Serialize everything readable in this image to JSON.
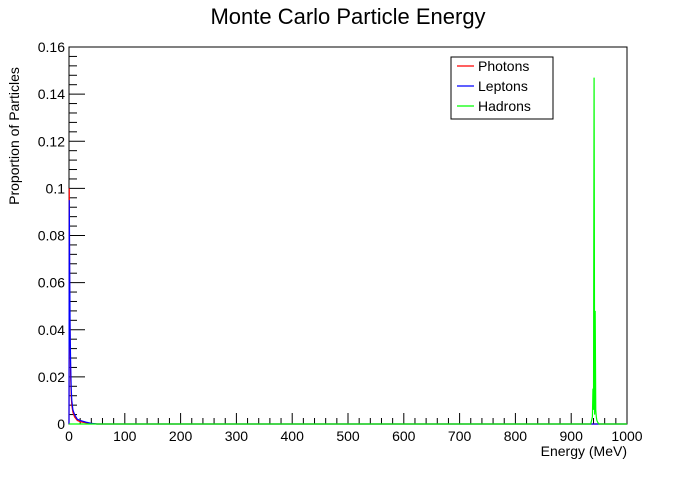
{
  "chart_data": {
    "type": "line",
    "title": "Monte Carlo Particle Energy",
    "xlabel": "Energy (MeV)",
    "ylabel": "Proportion of Particles",
    "xlim": [
      0,
      1000
    ],
    "ylim": [
      0,
      0.16
    ],
    "x_ticks": [
      0,
      100,
      200,
      300,
      400,
      500,
      600,
      700,
      800,
      900,
      1000
    ],
    "y_ticks": [
      0,
      0.02,
      0.04,
      0.06,
      0.08,
      0.1,
      0.12,
      0.14,
      0.16
    ],
    "x_tick_labels": [
      "0",
      "100",
      "200",
      "300",
      "400",
      "500",
      "600",
      "700",
      "800",
      "900",
      "1000"
    ],
    "y_tick_labels": [
      "0",
      "0.02",
      "0.04",
      "0.06",
      "0.08",
      "0.1",
      "0.12",
      "0.14",
      "0.16"
    ],
    "legend_position": "top-right",
    "grid": false,
    "series": [
      {
        "name": "Photons",
        "color": "#ff0000",
        "x": [
          0,
          0.5,
          1,
          2,
          3,
          4,
          5,
          7,
          10,
          15,
          20,
          30,
          50,
          100,
          1000
        ],
        "y": [
          0,
          0.1,
          0.06,
          0.035,
          0.02,
          0.012,
          0.008,
          0.005,
          0.003,
          0.0015,
          0.001,
          0.0005,
          0,
          0,
          0
        ]
      },
      {
        "name": "Leptons",
        "color": "#0000ff",
        "x": [
          0,
          0.5,
          1,
          2,
          3,
          4,
          5,
          7,
          10,
          15,
          20,
          30,
          40,
          50,
          100,
          1000
        ],
        "y": [
          0,
          0.095,
          0.075,
          0.04,
          0.025,
          0.015,
          0.01,
          0.006,
          0.004,
          0.002,
          0.0015,
          0.0008,
          0.0003,
          0,
          0,
          0
        ]
      },
      {
        "name": "Hadrons",
        "color": "#00ff00",
        "x": [
          0,
          100,
          900,
          935,
          938,
          939,
          940,
          941,
          942,
          943,
          944,
          945,
          946,
          948,
          950,
          1000
        ],
        "y": [
          0,
          0,
          0,
          0,
          0.003,
          0.015,
          0.006,
          0.147,
          0.004,
          0.048,
          0.006,
          0.003,
          0.0015,
          0.0005,
          0,
          0
        ]
      }
    ]
  }
}
